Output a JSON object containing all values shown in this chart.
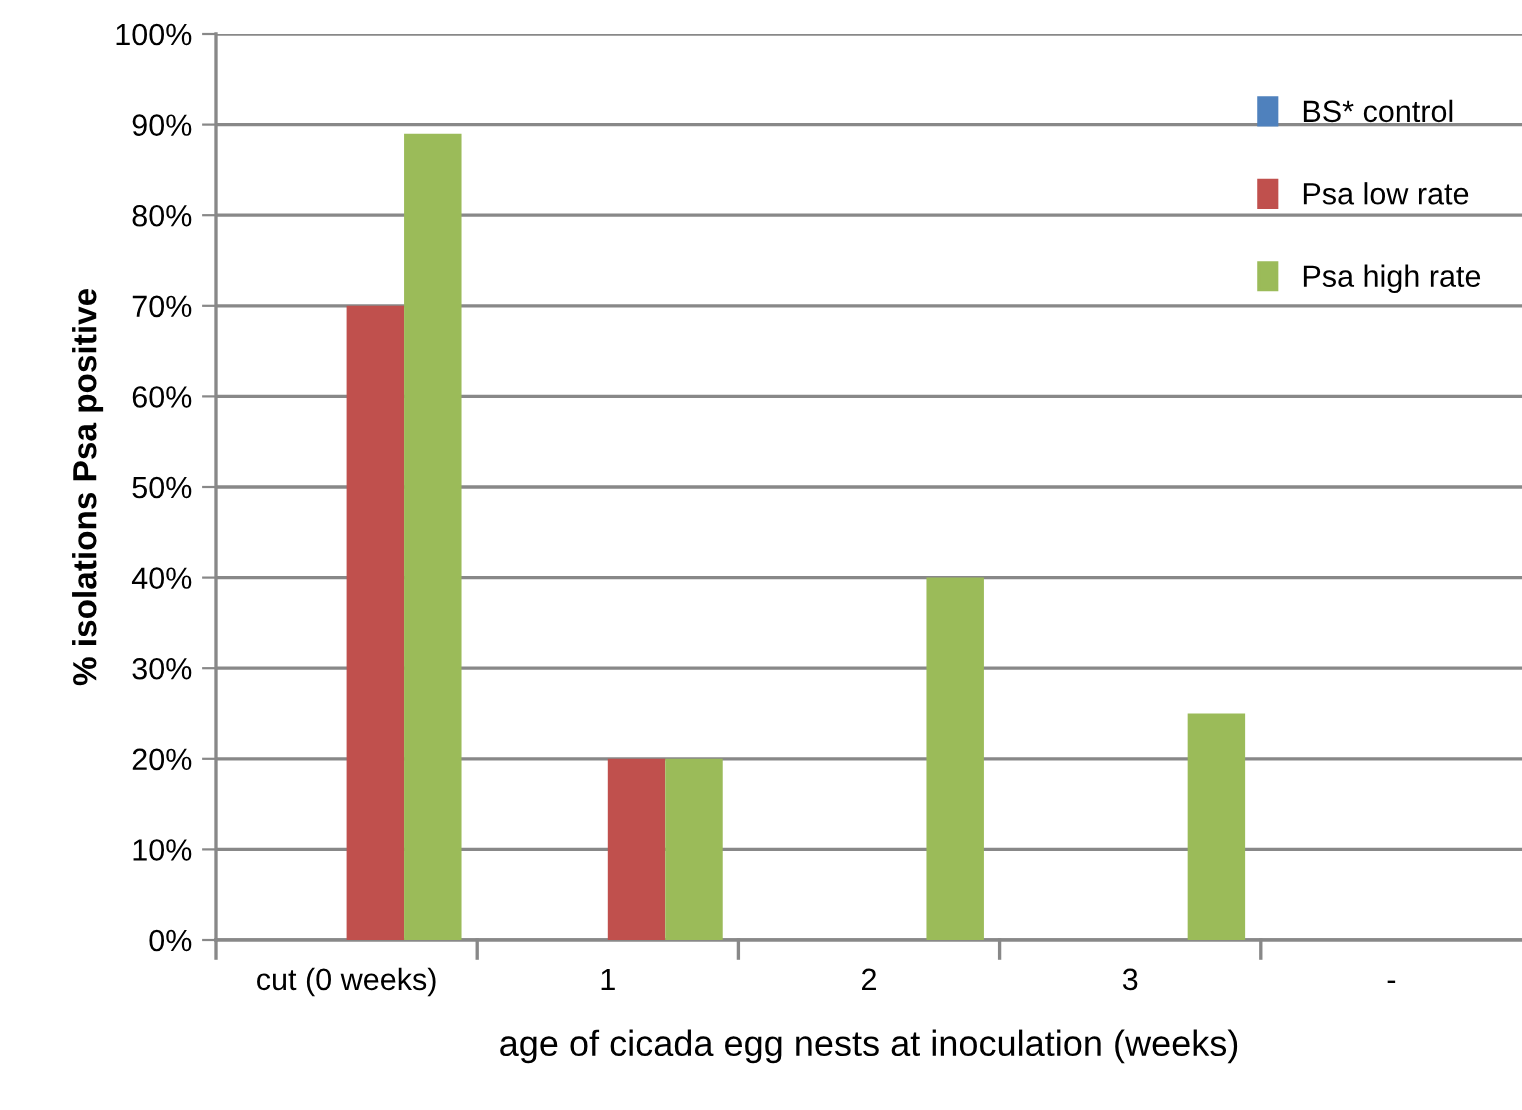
{
  "chart_data": {
    "type": "bar",
    "xlabel": "age of cicada egg nests at inoculation (weeks)",
    "ylabel": "% isolations Psa positive",
    "categories": [
      "cut (0 weeks)",
      "1",
      "2",
      "3",
      "-"
    ],
    "series": [
      {
        "name": "BS* control",
        "color": "#4f81bd",
        "values": [
          0,
          0,
          0,
          0,
          0
        ]
      },
      {
        "name": "Psa low rate",
        "color": "#c0504d",
        "values": [
          0.7,
          0.2,
          0,
          0,
          0
        ]
      },
      {
        "name": "Psa high rate",
        "color": "#9bbb59",
        "values": [
          0.89,
          0.2,
          0.4,
          0.25,
          0
        ]
      }
    ],
    "ylim": [
      0,
      1
    ],
    "yticks": [
      {
        "value": 0,
        "label": "0%"
      },
      {
        "value": 0.1,
        "label": "10%"
      },
      {
        "value": 0.2,
        "label": "20%"
      },
      {
        "value": 0.3,
        "label": "30%"
      },
      {
        "value": 0.4,
        "label": "40%"
      },
      {
        "value": 0.5,
        "label": "50%"
      },
      {
        "value": 0.6,
        "label": "60%"
      },
      {
        "value": 0.7,
        "label": "70%"
      },
      {
        "value": 0.8,
        "label": "80%"
      },
      {
        "value": 0.9,
        "label": "90%"
      },
      {
        "value": 1,
        "label": "100%"
      }
    ],
    "grid": "y",
    "legend": "top right"
  }
}
